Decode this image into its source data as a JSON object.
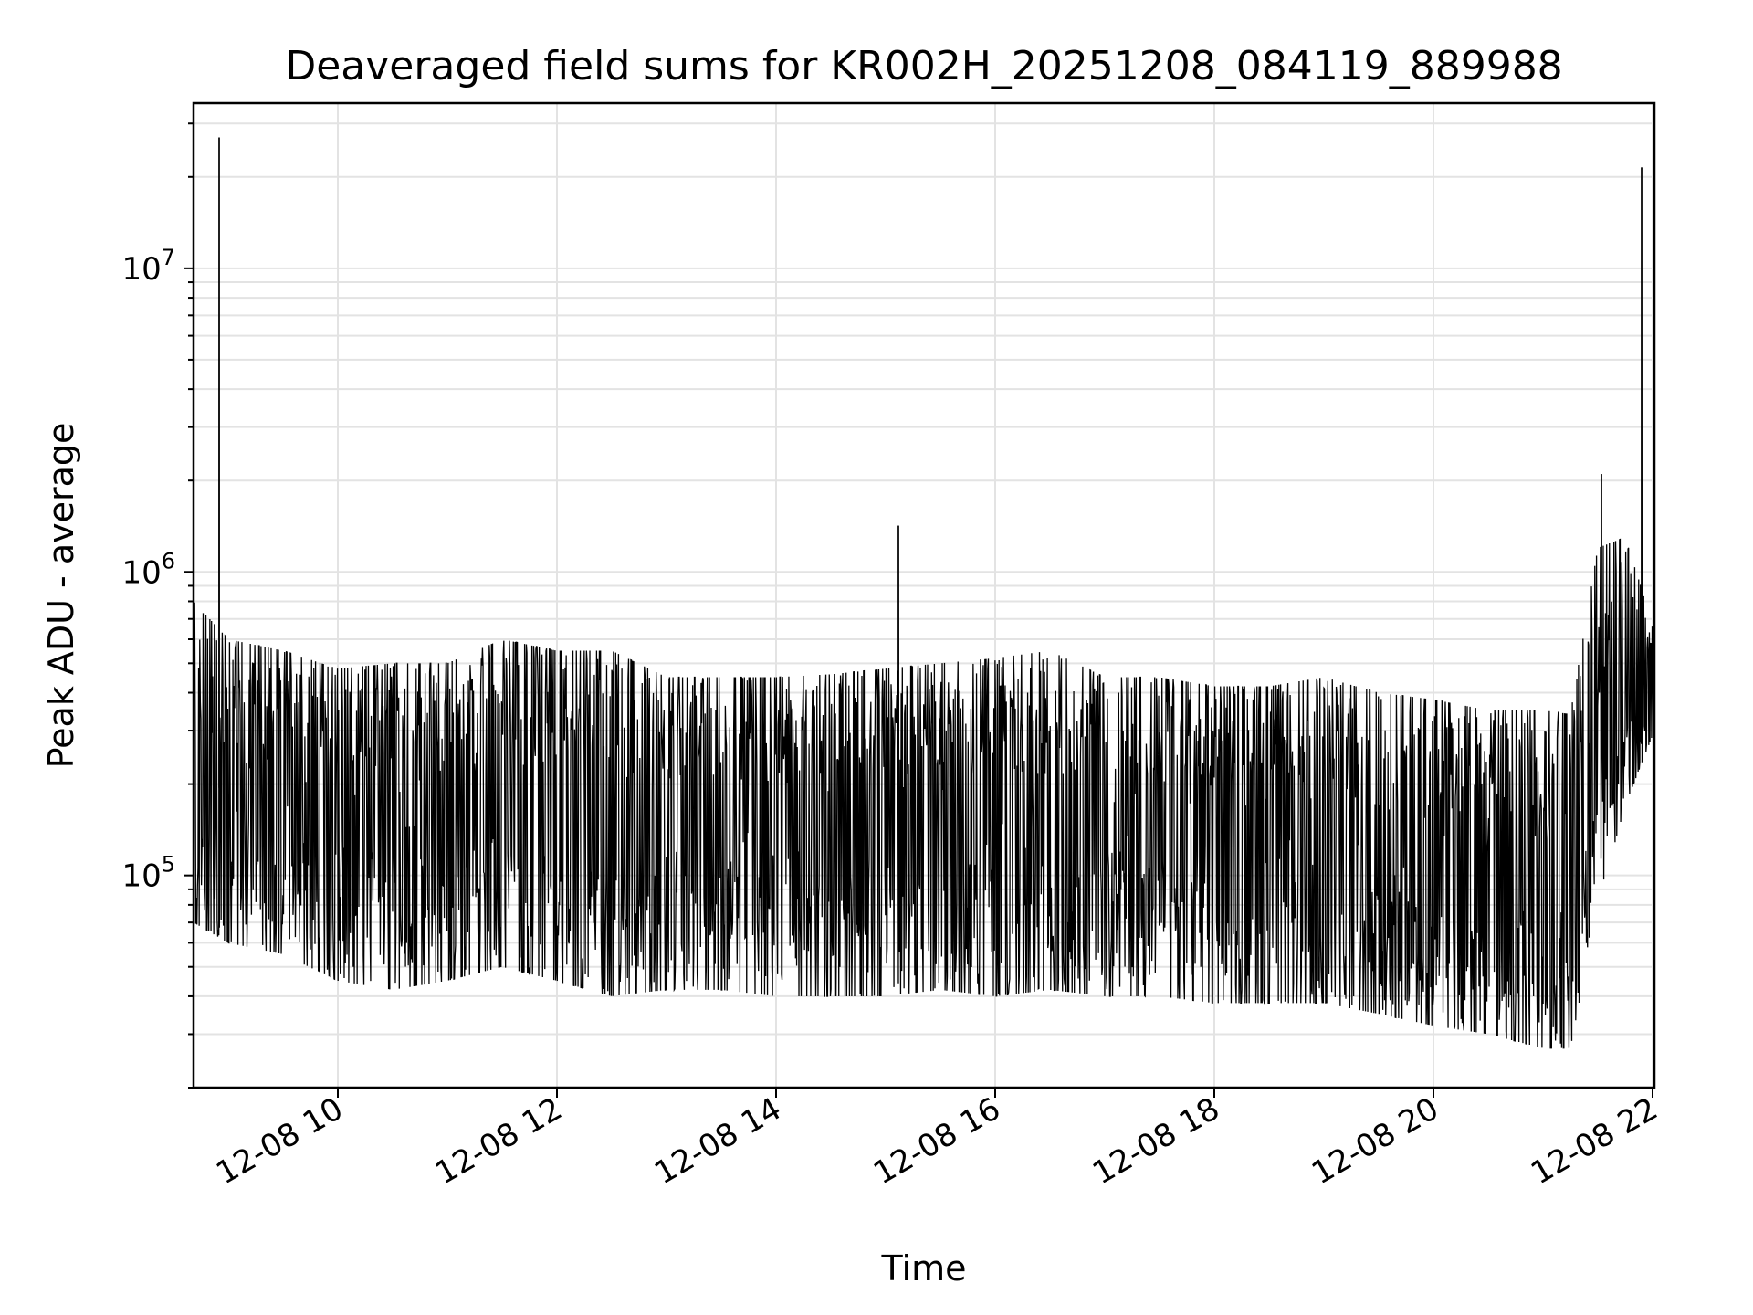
{
  "chart_data": {
    "type": "line",
    "title": "Deaveraged field sums for KR002H_20251208_084119_889988",
    "xlabel": "Time",
    "ylabel": "Peak ADU - average",
    "yscale": "log",
    "grid": true,
    "grid_minor": true,
    "xlim": [
      "2025-12-08 08:41",
      "2025-12-08 22:01"
    ],
    "ylim": [
      20000,
      35000000
    ],
    "x_ticks": [
      "12-08 10",
      "12-08 12",
      "12-08 14",
      "12-08 16",
      "12-08 18",
      "12-08 20",
      "12-08 22"
    ],
    "y_ticks": [
      {
        "base": "10",
        "exp": "5",
        "value": 100000
      },
      {
        "base": "10",
        "exp": "6",
        "value": 1000000
      },
      {
        "base": "10",
        "exp": "7",
        "value": 10000000
      }
    ],
    "line_color": "#000000",
    "series": [
      {
        "x": [
          "2025-12-08 08:41",
          "2025-12-08 09:00",
          "2025-12-08 09:30",
          "2025-12-08 10:00",
          "2025-12-08 10:30",
          "2025-12-08 11:00",
          "2025-12-08 11:30",
          "2025-12-08 12:00",
          "2025-12-08 12:30",
          "2025-12-08 13:00",
          "2025-12-08 13:30",
          "2025-12-08 14:00",
          "2025-12-08 14:30",
          "2025-12-08 15:00",
          "2025-12-08 15:30",
          "2025-12-08 16:00",
          "2025-12-08 16:30",
          "2025-12-08 17:00",
          "2025-12-08 17:30",
          "2025-12-08 18:00",
          "2025-12-08 18:30",
          "2025-12-08 19:00",
          "2025-12-08 19:30",
          "2025-12-08 20:00",
          "2025-12-08 20:30",
          "2025-12-08 21:00",
          "2025-12-08 21:15",
          "2025-12-08 21:30",
          "2025-12-08 21:45",
          "2025-12-08 22:01"
        ],
        "y": [
          180000,
          200000,
          190000,
          180000,
          170000,
          190000,
          200000,
          180000,
          160000,
          170000,
          165000,
          175000,
          170000,
          180000,
          185000,
          180000,
          175000,
          170000,
          165000,
          155000,
          150000,
          150000,
          140000,
          120000,
          110000,
          110000,
          100000,
          300000,
          420000,
          450000
        ],
        "spread_low": [
          70000,
          60000,
          55000,
          45000,
          42000,
          45000,
          50000,
          45000,
          40000,
          42000,
          42000,
          40000,
          40000,
          40000,
          42000,
          40000,
          42000,
          40000,
          40000,
          38000,
          38000,
          38000,
          35000,
          32000,
          30000,
          27000,
          27000,
          80000,
          170000,
          300000
        ],
        "spread_high": [
          800000,
          600000,
          550000,
          480000,
          500000,
          500000,
          600000,
          550000,
          550000,
          450000,
          450000,
          450000,
          460000,
          480000,
          500000,
          520000,
          550000,
          450000,
          450000,
          420000,
          420000,
          450000,
          400000,
          380000,
          350000,
          350000,
          340000,
          1200000,
          1300000,
          650000
        ]
      }
    ],
    "spikes": [
      {
        "x": "2025-12-08 08:55",
        "y": 27000000
      },
      {
        "x": "2025-12-08 15:07",
        "y": 1420000
      },
      {
        "x": "2025-12-08 21:32",
        "y": 2100000
      },
      {
        "x": "2025-12-08 21:54",
        "y": 21500000
      }
    ]
  }
}
